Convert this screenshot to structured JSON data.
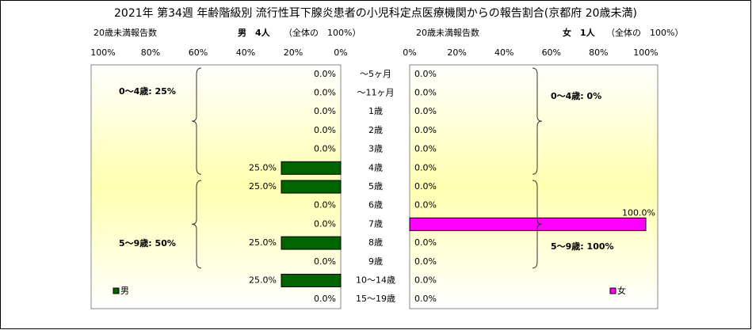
{
  "chart_data": {
    "type": "bar",
    "title": "2021年 第34週 年齢階級別 流行性耳下腺炎患者の小児科定点医療機関からの報告割合(京都府 20歳未満)",
    "categories": [
      "～5ヶ月",
      "～11ヶ月",
      "1歳",
      "2歳",
      "3歳",
      "4歳",
      "5歳",
      "6歳",
      "7歳",
      "8歳",
      "9歳",
      "10～14歳",
      "15～19歳"
    ],
    "panels": [
      {
        "name": "男",
        "color": "#006400",
        "reverse": true,
        "count_label": "20歳未満報告数",
        "total": "男　4人",
        "share": "（全体の　100%）",
        "values": [
          0,
          0,
          0,
          0,
          0,
          25,
          25,
          0,
          0,
          25,
          0,
          25,
          0
        ],
        "value_labels": [
          "0.0%",
          "0.0%",
          "0.0%",
          "0.0%",
          "0.0%",
          "25.0%",
          "25.0%",
          "0.0%",
          "0.0%",
          "25.0%",
          "0.0%",
          "25.0%",
          "0.0%"
        ],
        "xlim": [
          0,
          100
        ],
        "xticks": [
          {
            "value": 100,
            "label": "100%"
          },
          {
            "value": 80,
            "label": "80%"
          },
          {
            "value": 60,
            "label": "60%"
          },
          {
            "value": 40,
            "label": "40%"
          },
          {
            "value": 20,
            "label": "20%"
          },
          {
            "value": 0,
            "label": "0%"
          }
        ],
        "annotations": [
          "0～4歳: 25%",
          "5～9歳: 50%"
        ]
      },
      {
        "name": "女",
        "color": "#ff00ff",
        "reverse": false,
        "count_label": "20歳未満報告数",
        "total": "女　1人",
        "share": "（全体の　100%）",
        "values": [
          0,
          0,
          0,
          0,
          0,
          0,
          0,
          0,
          100,
          0,
          0,
          0,
          0
        ],
        "value_labels": [
          "0.0%",
          "0.0%",
          "0.0%",
          "0.0%",
          "0.0%",
          "0.0%",
          "0.0%",
          "0.0%",
          "100.0%",
          "0.0%",
          "0.0%",
          "0.0%",
          "0.0%"
        ],
        "xlim": [
          0,
          100
        ],
        "xticks": [
          {
            "value": 0,
            "label": "0%"
          },
          {
            "value": 20,
            "label": "20%"
          },
          {
            "value": 40,
            "label": "40%"
          },
          {
            "value": 60,
            "label": "60%"
          },
          {
            "value": 80,
            "label": "80%"
          },
          {
            "value": 100,
            "label": "100%"
          }
        ],
        "annotations": [
          "0～4歳: 0%",
          "5～9歳: 100%"
        ]
      }
    ]
  }
}
